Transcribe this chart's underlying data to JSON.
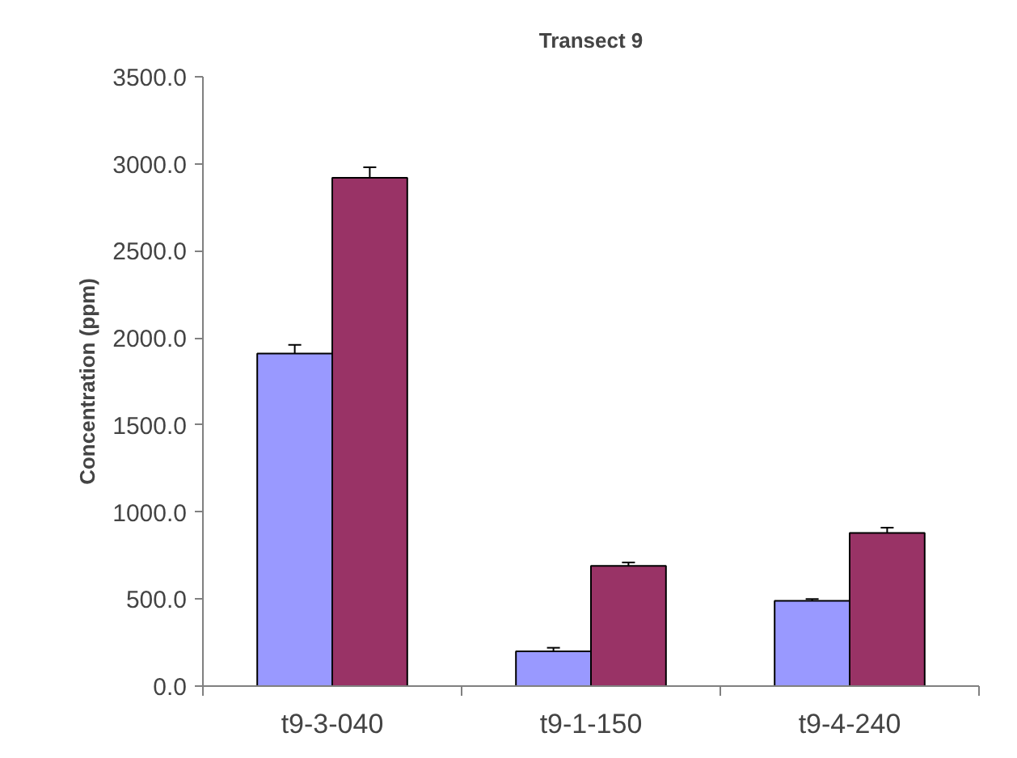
{
  "chart_data": {
    "type": "bar",
    "title": "Transect 9",
    "ylabel": "Concentration (ppm)",
    "categories": [
      "t9-3-040",
      "t9-1-150",
      "t9-4-240"
    ],
    "series": [
      {
        "color": "#9999ff",
        "values": [
          1910,
          200,
          490
        ],
        "errors": [
          50,
          20,
          10
        ]
      },
      {
        "color": "#993366",
        "values": [
          2920,
          690,
          880
        ],
        "errors": [
          60,
          20,
          30
        ]
      }
    ],
    "ylim": [
      0,
      3500
    ],
    "yticks": [
      {
        "value": 0,
        "label": "0.0"
      },
      {
        "value": 500,
        "label": "500.0"
      },
      {
        "value": 1000,
        "label": "1000.0"
      },
      {
        "value": 1500,
        "label": "1500.0"
      },
      {
        "value": 2000,
        "label": "2000.0"
      },
      {
        "value": 2500,
        "label": "2500.0"
      },
      {
        "value": 3000,
        "label": "3000.0"
      },
      {
        "value": 3500,
        "label": "3500.0"
      }
    ],
    "grid": false
  }
}
